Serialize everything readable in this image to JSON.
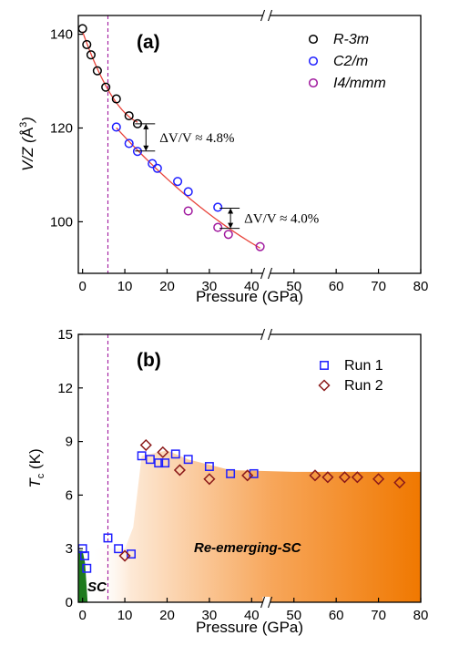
{
  "chart_data": [
    {
      "panel": "(a)",
      "type": "scatter",
      "xlabel": "Pressure (GPa)",
      "ylabel": "V/Z (Å³)",
      "ylabel_main": "V/Z (",
      "ylabel_unit": "Å",
      "ylabel_exp": "3",
      "ylabel_close": ")",
      "xlim": [
        -1,
        80
      ],
      "ylim": [
        89,
        144
      ],
      "xticks": [
        "0",
        "10",
        "20",
        "30",
        "40",
        "50",
        "60",
        "70",
        "80"
      ],
      "yticks": [
        "100",
        "120",
        "140"
      ],
      "axis_break": "x between 40 and 50",
      "legend_position": "top-right",
      "series": [
        {
          "name": "R-3m",
          "color": "#000000",
          "marker": "circle",
          "x": [
            0,
            1,
            2,
            3.5,
            5.5,
            8,
            11,
            13
          ],
          "y": [
            141.2,
            137.8,
            135.6,
            132.2,
            128.7,
            126.2,
            122.6,
            120.9
          ]
        },
        {
          "name": "C2/m",
          "color": "#1f1fff",
          "marker": "circle",
          "x": [
            8,
            11,
            13,
            16.5,
            17.7,
            22.5,
            25,
            32
          ],
          "y": [
            120.2,
            116.7,
            115,
            112.4,
            111.4,
            108.6,
            106.4,
            103.1
          ]
        },
        {
          "name": "I4/mmm",
          "color": "#a0199e",
          "marker": "circle",
          "x": [
            25,
            32,
            34.5,
            42
          ],
          "y": [
            102.3,
            98.8,
            97.3,
            94.7
          ]
        }
      ],
      "fit_curve_color": "#e8433a",
      "annotations": [
        {
          "text": "ΔV/V ≈ 4.8%",
          "x": 15,
          "y_top": 120.9,
          "y_bottom": 115.1
        },
        {
          "text": "ΔV/V ≈ 4.0%",
          "x": 35,
          "y_top": 102.9,
          "y_bottom": 98.6
        }
      ],
      "vertical_marker": {
        "x": 6,
        "style": "dashed",
        "color": "#a0199e"
      }
    },
    {
      "panel": "(b)",
      "type": "scatter",
      "xlabel": "Pressure (GPa)",
      "ylabel_main": "T",
      "ylabel_sub": "c",
      "ylabel_unit": " (K)",
      "xlim": [
        -1,
        80
      ],
      "ylim": [
        0,
        15
      ],
      "xticks": [
        "0",
        "10",
        "20",
        "30",
        "40",
        "50",
        "60",
        "70",
        "80"
      ],
      "yticks": [
        "0",
        "3",
        "6",
        "9",
        "12",
        "15"
      ],
      "axis_break": "x between 40 and 50",
      "legend_position": "top-right",
      "series": [
        {
          "name": "Run 1",
          "color": "#1f1fff",
          "marker": "square",
          "x": [
            0,
            0.5,
            1,
            6,
            8.5,
            11.5,
            14,
            16,
            18,
            19.5,
            22,
            25,
            30,
            35,
            40.5
          ],
          "y": [
            3.0,
            2.6,
            1.9,
            3.6,
            3.0,
            2.7,
            8.2,
            8.0,
            7.8,
            7.8,
            8.3,
            8.0,
            7.6,
            7.2,
            7.2
          ]
        },
        {
          "name": "Run 2",
          "color": "#8b1a1a",
          "marker": "diamond",
          "x": [
            10,
            15,
            19,
            23,
            30,
            39,
            55,
            58,
            62,
            65,
            70,
            75
          ],
          "y": [
            2.6,
            8.8,
            8.4,
            7.4,
            6.9,
            7.1,
            7.1,
            7.0,
            7.0,
            7.0,
            6.9,
            6.7
          ]
        }
      ],
      "regions": [
        {
          "label": "SC",
          "color": "#1e7a1e"
        },
        {
          "label": "Re-emerging-SC",
          "color": "#f07800"
        }
      ],
      "vertical_marker": {
        "x": 6,
        "style": "dashed",
        "color": "#a0199e"
      }
    }
  ]
}
